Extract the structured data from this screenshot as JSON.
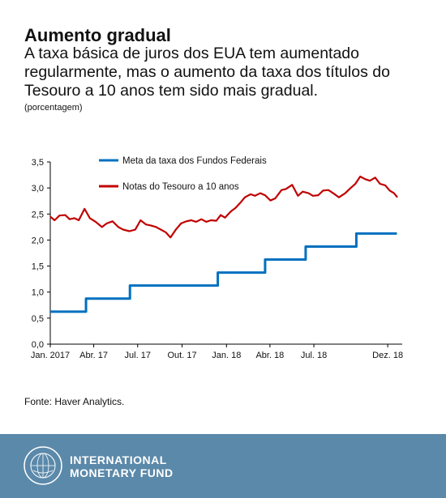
{
  "header": {
    "title": "Aumento gradual",
    "subtitle": "A taxa básica de juros dos EUA tem aumentado regularmente, mas o aumento da taxa dos títulos do Tesouro a 10 anos tem sido mais gradual.",
    "unit": "(porcentagem)"
  },
  "footer": {
    "source": "Fonte: Haver Analytics.",
    "org_line1": "INTERNATIONAL",
    "org_line2": "MONETARY FUND",
    "seal_icon": "imf-seal-icon"
  },
  "colors": {
    "fed": "#0070c0",
    "treasury": "#c00000",
    "footer_bg": "#5b89aa"
  },
  "chart_data": {
    "type": "line",
    "ylim": [
      0,
      3.5
    ],
    "yticks": [
      "0,0",
      "0,5",
      "1,0",
      "1,5",
      "2,0",
      "2,5",
      "3,0",
      "3,5"
    ],
    "yticks_values": [
      0,
      0.5,
      1.0,
      1.5,
      2.0,
      2.5,
      3.0,
      3.5
    ],
    "xlim": [
      "2017-01-01",
      "2018-12-31"
    ],
    "xticks": [
      {
        "label": "Jan. 2017",
        "date": "2017-01-01"
      },
      {
        "label": "Abr. 17",
        "date": "2017-04-01"
      },
      {
        "label": "Jul. 17",
        "date": "2017-07-01"
      },
      {
        "label": "Out. 17",
        "date": "2017-10-01"
      },
      {
        "label": "Jan. 18",
        "date": "2018-01-01"
      },
      {
        "label": "Abr. 18",
        "date": "2018-04-01"
      },
      {
        "label": "Jul. 18",
        "date": "2018-07-01"
      },
      {
        "label": "Dez. 18",
        "date": "2018-12-01"
      }
    ],
    "legend_position": "top-left",
    "series": [
      {
        "name": "Meta da taxa dos Fundos Federais",
        "color": "#0070c0",
        "step": true,
        "x": [
          "2017-01-01",
          "2017-03-16",
          "2017-06-15",
          "2017-12-14",
          "2018-03-22",
          "2018-06-14",
          "2018-09-27",
          "2018-12-20"
        ],
        "y": [
          0.625,
          0.875,
          1.125,
          1.375,
          1.625,
          1.875,
          2.125,
          2.125
        ]
      },
      {
        "name": "Notas do Tesouro a 10 anos",
        "color": "#c00000",
        "step": false,
        "x": [
          "2017-01-01",
          "2017-01-10",
          "2017-01-20",
          "2017-02-01",
          "2017-02-10",
          "2017-02-20",
          "2017-03-01",
          "2017-03-13",
          "2017-03-24",
          "2017-04-05",
          "2017-04-18",
          "2017-04-28",
          "2017-05-10",
          "2017-05-22",
          "2017-06-01",
          "2017-06-14",
          "2017-06-26",
          "2017-07-07",
          "2017-07-18",
          "2017-07-28",
          "2017-08-08",
          "2017-08-18",
          "2017-08-28",
          "2017-09-07",
          "2017-09-18",
          "2017-09-29",
          "2017-10-10",
          "2017-10-20",
          "2017-10-30",
          "2017-11-10",
          "2017-11-20",
          "2017-11-30",
          "2017-12-11",
          "2017-12-20",
          "2017-12-29",
          "2018-01-10",
          "2018-01-20",
          "2018-01-30",
          "2018-02-08",
          "2018-02-20",
          "2018-03-01",
          "2018-03-12",
          "2018-03-22",
          "2018-04-02",
          "2018-04-12",
          "2018-04-25",
          "2018-05-04",
          "2018-05-17",
          "2018-05-29",
          "2018-06-08",
          "2018-06-20",
          "2018-06-29",
          "2018-07-10",
          "2018-07-20",
          "2018-07-31",
          "2018-08-10",
          "2018-08-22",
          "2018-09-04",
          "2018-09-14",
          "2018-09-25",
          "2018-10-05",
          "2018-10-15",
          "2018-10-25",
          "2018-11-05",
          "2018-11-15",
          "2018-11-26",
          "2018-12-05",
          "2018-12-14",
          "2018-12-21"
        ],
        "y": [
          2.45,
          2.38,
          2.47,
          2.48,
          2.4,
          2.42,
          2.38,
          2.6,
          2.42,
          2.35,
          2.25,
          2.32,
          2.36,
          2.25,
          2.2,
          2.17,
          2.2,
          2.38,
          2.3,
          2.28,
          2.25,
          2.2,
          2.15,
          2.05,
          2.2,
          2.32,
          2.36,
          2.38,
          2.35,
          2.4,
          2.35,
          2.38,
          2.37,
          2.48,
          2.43,
          2.55,
          2.62,
          2.72,
          2.82,
          2.88,
          2.85,
          2.9,
          2.86,
          2.76,
          2.8,
          2.96,
          2.98,
          3.06,
          2.85,
          2.93,
          2.9,
          2.85,
          2.86,
          2.95,
          2.96,
          2.9,
          2.82,
          2.9,
          2.99,
          3.08,
          3.22,
          3.17,
          3.14,
          3.2,
          3.08,
          3.05,
          2.95,
          2.9,
          2.82
        ]
      }
    ]
  }
}
